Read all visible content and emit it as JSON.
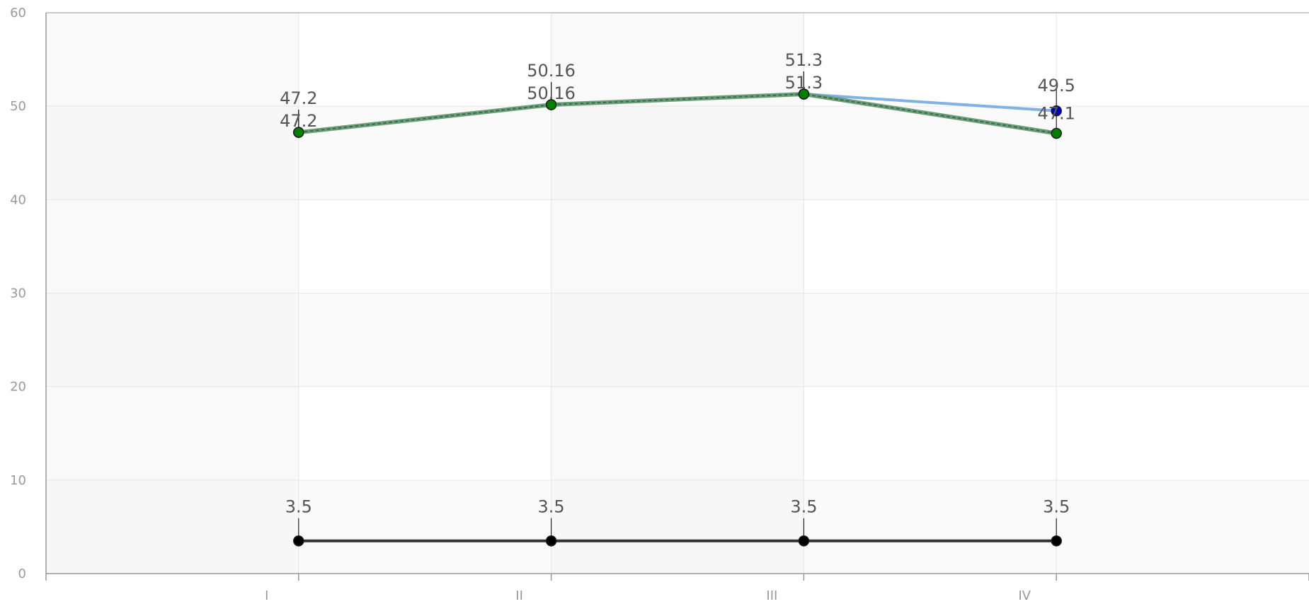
{
  "chart_data": {
    "type": "line",
    "categories": [
      "I",
      "II",
      "III",
      "IV"
    ],
    "ylim": [
      0,
      60
    ],
    "yticks": [
      0,
      10,
      20,
      30,
      40,
      50,
      60
    ],
    "grid": true,
    "legend": "none",
    "series": [
      {
        "values": [
          47.2,
          50.16,
          51.3,
          49.5
        ],
        "labels": [
          "47.2",
          "50.16",
          "51.3",
          "49.5"
        ],
        "line_color": "#7fb2e5",
        "marker_color": "#0000cc",
        "dashed": false
      },
      {
        "values": [
          47.2,
          50.16,
          51.3,
          47.1
        ],
        "labels": [
          "47.2",
          "50.16",
          "51.3",
          "47.1"
        ],
        "line_color": "#6b9e7a",
        "marker_color": "#008000",
        "dashed": true
      },
      {
        "values": [
          3.5,
          3.5,
          3.5,
          3.5
        ],
        "labels": [
          "3.5",
          "3.5",
          "3.5",
          "3.5"
        ],
        "line_color": "#333333",
        "marker_color": "#000000",
        "dashed": false
      }
    ],
    "colors": {
      "axis": "#999999",
      "grid": "#e6e6e6",
      "band_light": "#fafafa",
      "band_dark": "#f4f4f4"
    }
  }
}
